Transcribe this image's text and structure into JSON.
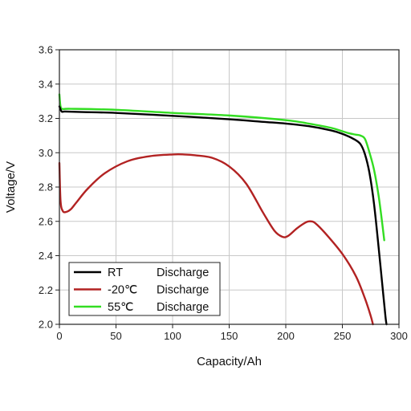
{
  "chart_data": {
    "type": "line",
    "title": "",
    "xlabel": "Capacity/Ah",
    "ylabel": "Voltage/V",
    "xlim": [
      0,
      300
    ],
    "ylim": [
      2.0,
      3.6
    ],
    "xticks": [
      "0",
      "50",
      "100",
      "150",
      "200",
      "250",
      "300"
    ],
    "yticks": [
      "2.0",
      "2.2",
      "2.4",
      "2.6",
      "2.8",
      "3.0",
      "3.2",
      "3.4",
      "3.6"
    ],
    "grid": true,
    "legend_position": "bottom-left",
    "series": [
      {
        "name": "RT",
        "legend_suffix": "Discharge",
        "color": "#000000",
        "x": [
          0,
          2,
          5,
          20,
          50,
          100,
          150,
          180,
          200,
          220,
          240,
          250,
          260,
          266,
          270,
          274,
          278,
          282,
          285,
          288,
          289
        ],
        "y": [
          3.27,
          3.24,
          3.24,
          3.237,
          3.232,
          3.215,
          3.195,
          3.18,
          3.17,
          3.155,
          3.13,
          3.11,
          3.08,
          3.05,
          2.99,
          2.88,
          2.7,
          2.45,
          2.25,
          2.05,
          2.0
        ]
      },
      {
        "name": "-20℃",
        "legend_suffix": "Discharge",
        "color": "#b22222",
        "x": [
          0,
          1,
          3,
          6,
          10,
          15,
          25,
          40,
          60,
          80,
          100,
          110,
          120,
          135,
          150,
          165,
          180,
          190,
          197,
          202,
          210,
          218,
          222,
          226,
          235,
          250,
          262,
          270,
          275,
          277
        ],
        "y": [
          2.94,
          2.72,
          2.66,
          2.655,
          2.67,
          2.71,
          2.79,
          2.88,
          2.95,
          2.98,
          2.99,
          2.99,
          2.985,
          2.97,
          2.92,
          2.82,
          2.65,
          2.545,
          2.51,
          2.515,
          2.56,
          2.595,
          2.6,
          2.59,
          2.53,
          2.41,
          2.28,
          2.15,
          2.05,
          2.0
        ]
      },
      {
        "name": "55℃",
        "legend_suffix": "Discharge",
        "color": "#33dd22",
        "x": [
          0,
          1,
          3,
          10,
          50,
          100,
          150,
          200,
          220,
          240,
          250,
          256,
          262,
          266,
          270,
          274,
          278,
          282,
          285,
          287
        ],
        "y": [
          3.34,
          3.27,
          3.255,
          3.256,
          3.25,
          3.232,
          3.217,
          3.19,
          3.17,
          3.145,
          3.125,
          3.113,
          3.105,
          3.1,
          3.08,
          3.0,
          2.9,
          2.75,
          2.6,
          2.49
        ]
      }
    ]
  }
}
